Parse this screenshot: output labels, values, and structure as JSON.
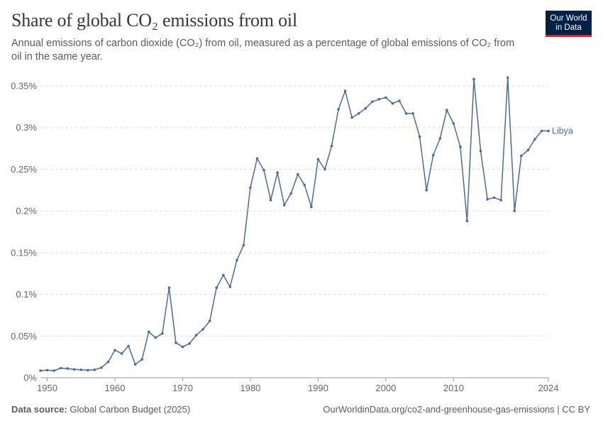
{
  "header": {
    "title": "Share of global CO₂ emissions from oil",
    "subtitle": "Annual emissions of carbon dioxide (CO₂) from oil, measured as a percentage of global emissions of CO₂ from oil in the same year."
  },
  "logo": {
    "line1": "Our World",
    "line2": "in Data",
    "bg_color": "#002147",
    "accent_color": "#ce261e"
  },
  "footer": {
    "source_label": "Data source:",
    "source_value": "Global Carbon Budget (2025)",
    "right_text": "OurWorldinData.org/co2-and-greenhouse-gas-emissions | CC BY"
  },
  "chart_data": {
    "type": "line",
    "title": "Share of global CO₂ emissions from oil",
    "xlim": [
      1949,
      2024
    ],
    "ylim": [
      0,
      0.35
    ],
    "x_tick_labels": [
      "1950",
      "1960",
      "1970",
      "1980",
      "1990",
      "2000",
      "2010",
      "2024"
    ],
    "x_ticks": [
      1950,
      1960,
      1970,
      1980,
      1990,
      2000,
      2010,
      2024
    ],
    "y_tick_labels": [
      "0%",
      "0.05%",
      "0.1%",
      "0.15%",
      "0.2%",
      "0.25%",
      "0.3%",
      "0.35%"
    ],
    "y_ticks": [
      0,
      0.05,
      0.1,
      0.15,
      0.2,
      0.25,
      0.3,
      0.35
    ],
    "grid": true,
    "line_color": "#4c6a9c",
    "series": [
      {
        "name": "Libya",
        "x": [
          1949,
          1950,
          1951,
          1952,
          1953,
          1954,
          1955,
          1956,
          1957,
          1958,
          1959,
          1960,
          1961,
          1962,
          1963,
          1964,
          1965,
          1966,
          1967,
          1968,
          1969,
          1970,
          1971,
          1972,
          1973,
          1974,
          1975,
          1976,
          1977,
          1978,
          1979,
          1980,
          1981,
          1982,
          1983,
          1984,
          1985,
          1986,
          1987,
          1988,
          1989,
          1990,
          1991,
          1992,
          1993,
          1994,
          1995,
          1996,
          1997,
          1998,
          1999,
          2000,
          2001,
          2002,
          2003,
          2004,
          2005,
          2006,
          2007,
          2008,
          2009,
          2010,
          2011,
          2012,
          2013,
          2014,
          2015,
          2016,
          2017,
          2018,
          2019,
          2020,
          2021,
          2022,
          2023,
          2024
        ],
        "values": [
          0.0085,
          0.009,
          0.0085,
          0.0115,
          0.011,
          0.01,
          0.0095,
          0.009,
          0.0095,
          0.012,
          0.019,
          0.033,
          0.029,
          0.038,
          0.016,
          0.022,
          0.055,
          0.048,
          0.053,
          0.108,
          0.042,
          0.037,
          0.041,
          0.051,
          0.058,
          0.068,
          0.108,
          0.123,
          0.109,
          0.141,
          0.159,
          0.228,
          0.263,
          0.249,
          0.213,
          0.246,
          0.207,
          0.221,
          0.244,
          0.231,
          0.205,
          0.262,
          0.25,
          0.278,
          0.322,
          0.344,
          0.312,
          0.317,
          0.323,
          0.331,
          0.334,
          0.336,
          0.329,
          0.332,
          0.317,
          0.317,
          0.289,
          0.225,
          0.267,
          0.287,
          0.321,
          0.305,
          0.277,
          0.188,
          0.358,
          0.272,
          0.214,
          0.216,
          0.213,
          0.36,
          0.2,
          0.266,
          0.273,
          0.286,
          0.296,
          0.296
        ]
      }
    ]
  }
}
